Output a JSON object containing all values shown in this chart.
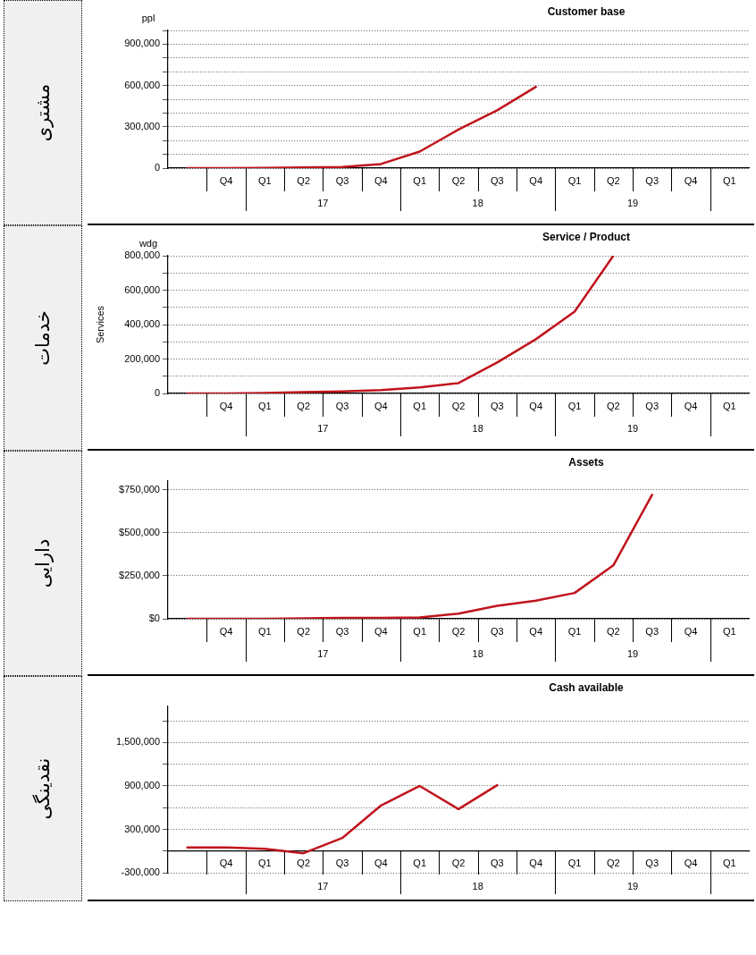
{
  "chart_data": [
    {
      "type": "line",
      "title": "Customer base",
      "subtitle": "مشتری",
      "categories": [
        null,
        "Q4",
        "Q1",
        "Q2",
        "Q3",
        "Q4",
        "Q1",
        "Q2",
        "Q3",
        "Q4",
        "Q1",
        "Q2",
        "Q3",
        "Q4",
        "Q1"
      ],
      "series": [
        {
          "color": "#c0141c",
          "values": [
            0,
            0,
            2000,
            5000,
            8000,
            30000,
            120000,
            280000,
            420000,
            590000,
            null,
            null,
            null,
            null,
            null
          ]
        }
      ],
      "ylim": [
        0,
        1000000
      ],
      "yticks": [
        {
          "value": 0,
          "label": "0"
        },
        {
          "value": 100000,
          "label": null
        },
        {
          "value": 200000,
          "label": null
        },
        {
          "value": 300000,
          "label": "300,000"
        },
        {
          "value": 400000,
          "label": null
        },
        {
          "value": 500000,
          "label": null
        },
        {
          "value": 600000,
          "label": "600,000"
        },
        {
          "value": 700000,
          "label": null
        },
        {
          "value": 800000,
          "label": null
        },
        {
          "value": 900000,
          "label": "900,000"
        },
        {
          "value": 1000000,
          "label": null
        }
      ],
      "annotations": [
        "ppl",
        "17",
        "18",
        "19"
      ],
      "grid": "y",
      "legend": false,
      "marker": "none",
      "line_style": "solid"
    },
    {
      "type": "line",
      "title": "Service / Product",
      "subtitle": "خدمات",
      "ylabel": "Services",
      "categories": [
        null,
        "Q4",
        "Q1",
        "Q2",
        "Q3",
        "Q4",
        "Q1",
        "Q2",
        "Q3",
        "Q4",
        "Q1",
        "Q2",
        "Q3",
        "Q4",
        "Q1"
      ],
      "series": [
        {
          "color": "#c0141c",
          "values": [
            0,
            0,
            3000,
            8000,
            12000,
            20000,
            35000,
            60000,
            180000,
            315000,
            475000,
            800000,
            null,
            null,
            null
          ]
        }
      ],
      "ylim": [
        0,
        800000
      ],
      "yticks": [
        {
          "value": 0,
          "label": "0"
        },
        {
          "value": 100000,
          "label": null
        },
        {
          "value": 200000,
          "label": "200,000"
        },
        {
          "value": 300000,
          "label": null
        },
        {
          "value": 400000,
          "label": "400,000"
        },
        {
          "value": 500000,
          "label": null
        },
        {
          "value": 600000,
          "label": "600,000"
        },
        {
          "value": 700000,
          "label": null
        },
        {
          "value": 800000,
          "label": "800,000"
        }
      ],
      "annotations": [
        "wdg",
        "17",
        "18",
        "19"
      ],
      "grid": "y",
      "legend": false,
      "marker": "none",
      "line_style": "solid"
    },
    {
      "type": "line",
      "title": "Assets",
      "subtitle": "دارایی",
      "categories": [
        null,
        "Q4",
        "Q1",
        "Q2",
        "Q3",
        "Q4",
        "Q1",
        "Q2",
        "Q3",
        "Q4",
        "Q1",
        "Q2",
        "Q3",
        "Q4",
        "Q1"
      ],
      "series": [
        {
          "color": "#c0141c",
          "values": [
            0,
            0,
            0,
            3000,
            5000,
            5000,
            8000,
            30000,
            75000,
            105000,
            150000,
            310000,
            720000,
            null,
            null
          ]
        }
      ],
      "ylim": [
        0,
        800000
      ],
      "yticks": [
        {
          "value": 0,
          "label": "$0"
        },
        {
          "value": 250000,
          "label": "$250,000"
        },
        {
          "value": 500000,
          "label": "$500,000"
        },
        {
          "value": 750000,
          "label": "$750,000"
        }
      ],
      "annotations": [
        "17",
        "18",
        "19"
      ],
      "grid": "y",
      "legend": false,
      "marker": "none",
      "line_style": "solid"
    },
    {
      "type": "line",
      "title": "Cash available",
      "subtitle": "نقدینگی",
      "categories": [
        null,
        "Q4",
        "Q1",
        "Q2",
        "Q3",
        "Q4",
        "Q1",
        "Q2",
        "Q3",
        "Q4",
        "Q1",
        "Q2",
        "Q3",
        "Q4",
        "Q1"
      ],
      "series": [
        {
          "color": "#c0141c",
          "values": [
            50000,
            50000,
            30000,
            -30000,
            180000,
            630000,
            900000,
            580000,
            910000,
            null,
            null,
            null,
            null,
            null,
            null
          ]
        }
      ],
      "ylim": [
        -300000,
        2000000
      ],
      "yticks": [
        {
          "value": -300000,
          "label": "-300,000"
        },
        {
          "value": 0,
          "label": null
        },
        {
          "value": 300000,
          "label": "300,000"
        },
        {
          "value": 600000,
          "label": null
        },
        {
          "value": 900000,
          "label": "900,000"
        },
        {
          "value": 1200000,
          "label": null
        },
        {
          "value": 1500000,
          "label": "1,500,000"
        },
        {
          "value": 1800000,
          "label": null
        }
      ],
      "annotations": [
        "17",
        "18",
        "19"
      ],
      "grid": "y",
      "legend": false,
      "marker": "none",
      "line_style": "solid"
    }
  ]
}
